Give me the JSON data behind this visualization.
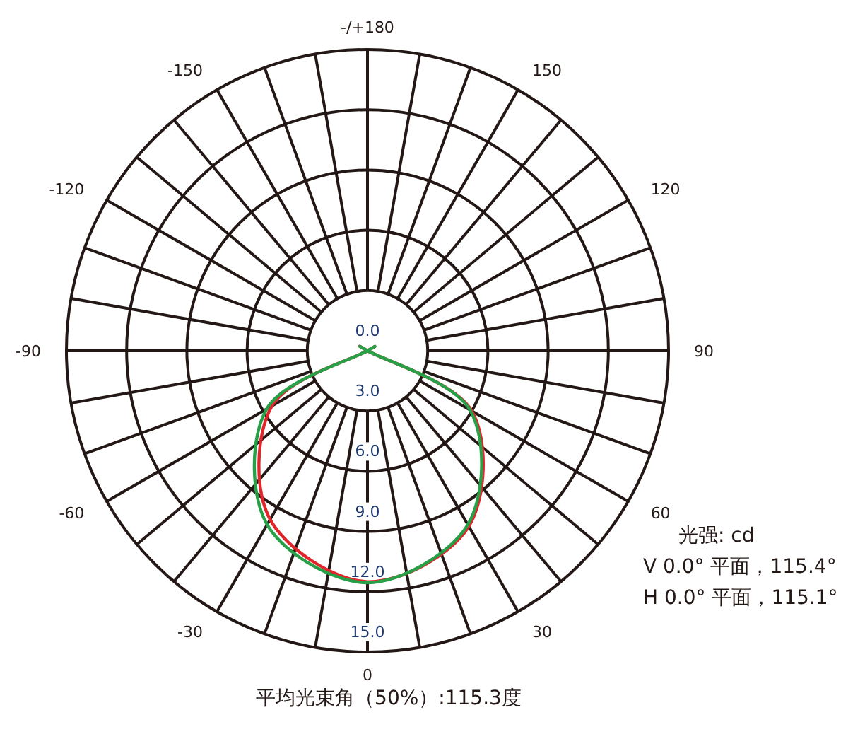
{
  "chart_data": {
    "type": "radar",
    "categories": [
      "-/+180",
      "150",
      "120",
      "90",
      "60",
      "30",
      "0",
      "-30",
      "-60",
      "-90",
      "-120",
      "-150"
    ],
    "series": [
      {
        "color": "#e0262b",
        "values": [
          0,
          0,
          0,
          0,
          6.0,
          10.1,
          11.5,
          9.7,
          5.5,
          0,
          0,
          0
        ]
      },
      {
        "color": "#27a048",
        "values": [
          0,
          0,
          0,
          0,
          5.9,
          10.0,
          11.55,
          10.0,
          5.8,
          0,
          0,
          0
        ]
      }
    ],
    "ylim": [
      0,
      15
    ],
    "yticks": [
      {
        "value": 0,
        "label": "0.0"
      },
      {
        "value": 3,
        "label": "3.0"
      },
      {
        "value": 6,
        "label": "6.0"
      },
      {
        "value": 9,
        "label": "9.0"
      },
      {
        "value": 12,
        "label": "12.0"
      },
      {
        "value": 15,
        "label": "15.0"
      }
    ],
    "grid": true,
    "annotations": [
      "光强: cd",
      "V 0.0° 平面，115.4°",
      "H 0.0° 平面，115.1°",
      "平均光束角（50%）:115.3度"
    ]
  }
}
